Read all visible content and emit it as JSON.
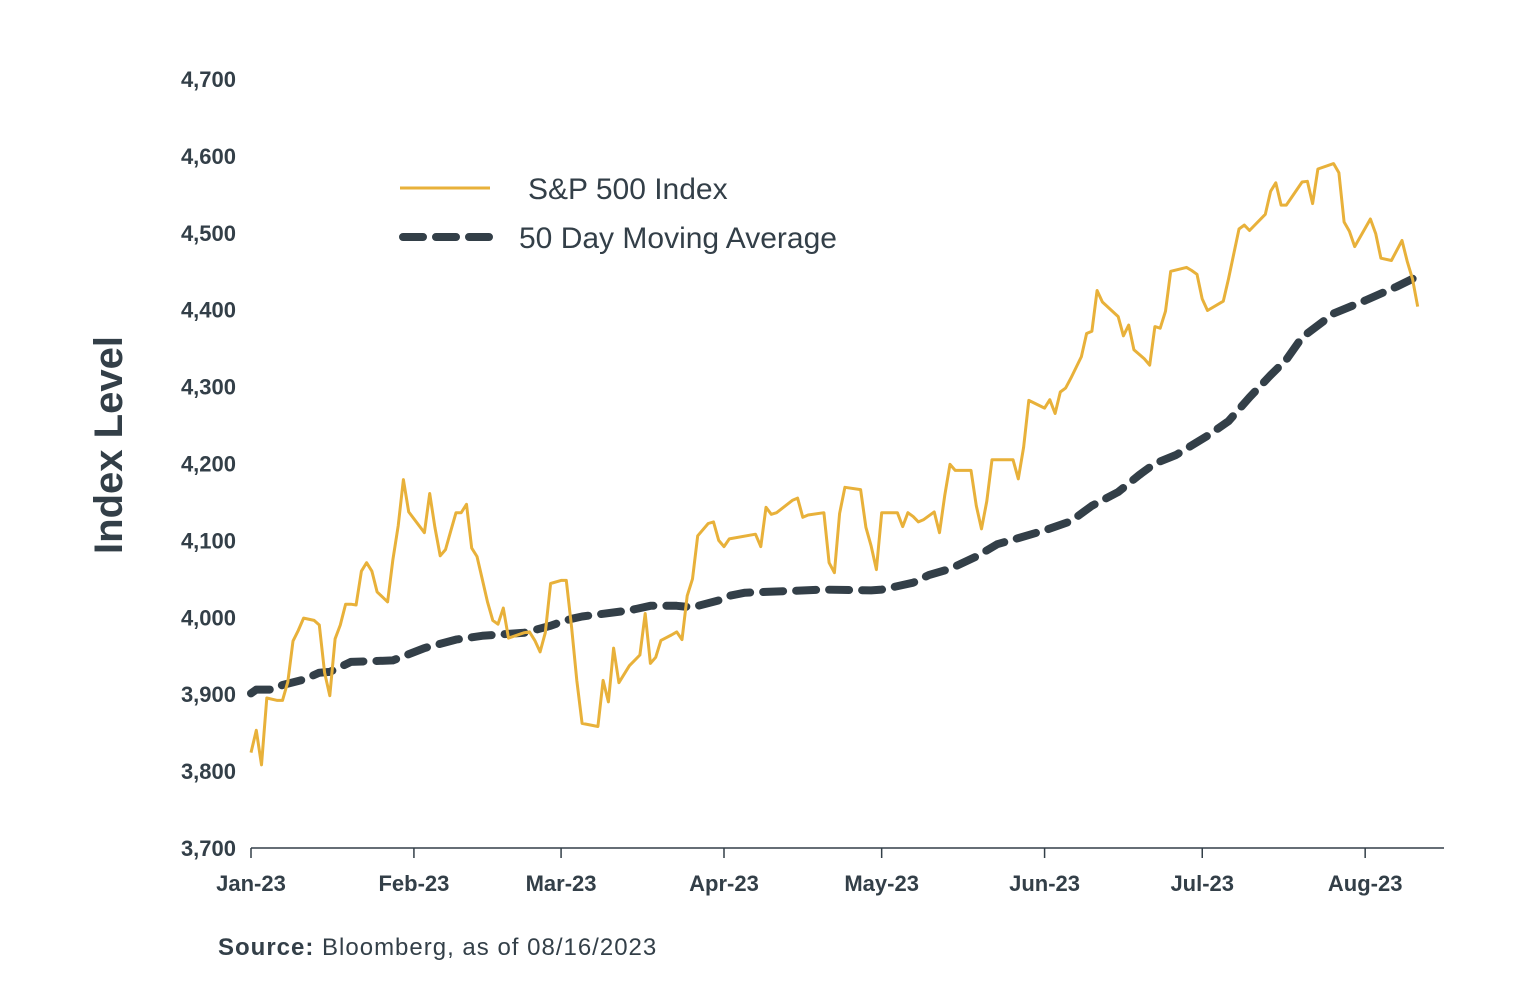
{
  "chart_data": {
    "type": "line",
    "ylabel": "Index Level",
    "xlabel": "",
    "ylim": [
      3700,
      4700
    ],
    "yticks": [
      "3,700",
      "3,800",
      "3,900",
      "4,000",
      "4,100",
      "4,200",
      "4,300",
      "4,400",
      "4,500",
      "4,600",
      "4,700"
    ],
    "ytick_values": [
      3700,
      3800,
      3900,
      4000,
      4100,
      4200,
      4300,
      4400,
      4500,
      4600,
      4700
    ],
    "xlim": [
      "2023-01-01",
      "2023-08-16"
    ],
    "xticks": [
      {
        "label": "Jan-23",
        "date": "2023-01-01"
      },
      {
        "label": "Feb-23",
        "date": "2023-02-01"
      },
      {
        "label": "Mar-23",
        "date": "2023-03-01"
      },
      {
        "label": "Apr-23",
        "date": "2023-04-01"
      },
      {
        "label": "May-23",
        "date": "2023-05-01"
      },
      {
        "label": "Jun-23",
        "date": "2023-06-01"
      },
      {
        "label": "Jul-23",
        "date": "2023-07-01"
      },
      {
        "label": "Aug-23",
        "date": "2023-08-01"
      }
    ],
    "legend_position": "top-left",
    "grid": false,
    "series": [
      {
        "name": "S&P 500 Index",
        "color": "#e8b13a",
        "style": "solid",
        "points": [
          [
            "2023-01-01",
            3824
          ],
          [
            "2023-01-02",
            3853
          ],
          [
            "2023-01-03",
            3808
          ],
          [
            "2023-01-04",
            3895
          ],
          [
            "2023-01-06",
            3892
          ],
          [
            "2023-01-07",
            3892
          ],
          [
            "2023-01-08",
            3916
          ],
          [
            "2023-01-09",
            3969
          ],
          [
            "2023-01-10",
            3983
          ],
          [
            "2023-01-11",
            3999
          ],
          [
            "2023-01-13",
            3996
          ],
          [
            "2023-01-14",
            3990
          ],
          [
            "2023-01-15",
            3928
          ],
          [
            "2023-01-16",
            3898
          ],
          [
            "2023-01-17",
            3972
          ],
          [
            "2023-01-18",
            3990
          ],
          [
            "2023-01-19",
            4017
          ],
          [
            "2023-01-20",
            4017
          ],
          [
            "2023-01-21",
            4016
          ],
          [
            "2023-01-22",
            4060
          ],
          [
            "2023-01-23",
            4071
          ],
          [
            "2023-01-24",
            4060
          ],
          [
            "2023-01-25",
            4033
          ],
          [
            "2023-01-27",
            4020
          ],
          [
            "2023-01-28",
            4075
          ],
          [
            "2023-01-29",
            4119
          ],
          [
            "2023-01-30",
            4179
          ],
          [
            "2023-01-31",
            4137
          ],
          [
            "2023-02-03",
            4110
          ],
          [
            "2023-02-04",
            4161
          ],
          [
            "2023-02-05",
            4117
          ],
          [
            "2023-02-06",
            4080
          ],
          [
            "2023-02-07",
            4088
          ],
          [
            "2023-02-08",
            4112
          ],
          [
            "2023-02-09",
            4136
          ],
          [
            "2023-02-10",
            4136
          ],
          [
            "2023-02-11",
            4147
          ],
          [
            "2023-02-12",
            4090
          ],
          [
            "2023-02-13",
            4079
          ],
          [
            "2023-02-14",
            4050
          ],
          [
            "2023-02-15",
            4020
          ],
          [
            "2023-02-16",
            3996
          ],
          [
            "2023-02-17",
            3991
          ],
          [
            "2023-02-18",
            4012
          ],
          [
            "2023-02-19",
            3973
          ],
          [
            "2023-02-22",
            3980
          ],
          [
            "2023-02-23",
            3981
          ],
          [
            "2023-02-24",
            3970
          ],
          [
            "2023-02-25",
            3955
          ],
          [
            "2023-02-26",
            3980
          ],
          [
            "2023-02-27",
            4044
          ],
          [
            "2023-03-01",
            4048
          ],
          [
            "2023-03-02",
            4048
          ],
          [
            "2023-03-03",
            3987
          ],
          [
            "2023-03-04",
            3918
          ],
          [
            "2023-03-05",
            3862
          ],
          [
            "2023-03-08",
            3858
          ],
          [
            "2023-03-09",
            3918
          ],
          [
            "2023-03-10",
            3890
          ],
          [
            "2023-03-11",
            3960
          ],
          [
            "2023-03-12",
            3915
          ],
          [
            "2023-03-14",
            3937
          ],
          [
            "2023-03-16",
            3951
          ],
          [
            "2023-03-17",
            4005
          ],
          [
            "2023-03-18",
            3940
          ],
          [
            "2023-03-19",
            3948
          ],
          [
            "2023-03-20",
            3970
          ],
          [
            "2023-03-22",
            3977
          ],
          [
            "2023-03-23",
            3981
          ],
          [
            "2023-03-24",
            3971
          ],
          [
            "2023-03-25",
            4028
          ],
          [
            "2023-03-26",
            4050
          ],
          [
            "2023-03-27",
            4106
          ],
          [
            "2023-03-29",
            4122
          ],
          [
            "2023-03-30",
            4124
          ],
          [
            "2023-03-31",
            4100
          ],
          [
            "2023-04-01",
            4092
          ],
          [
            "2023-04-02",
            4102
          ],
          [
            "2023-04-07",
            4108
          ],
          [
            "2023-04-08",
            4092
          ],
          [
            "2023-04-09",
            4143
          ],
          [
            "2023-04-10",
            4134
          ],
          [
            "2023-04-11",
            4136
          ],
          [
            "2023-04-14",
            4152
          ],
          [
            "2023-04-15",
            4155
          ],
          [
            "2023-04-16",
            4130
          ],
          [
            "2023-04-17",
            4133
          ],
          [
            "2023-04-20",
            4136
          ],
          [
            "2023-04-21",
            4071
          ],
          [
            "2023-04-22",
            4058
          ],
          [
            "2023-04-23",
            4135
          ],
          [
            "2023-04-24",
            4169
          ],
          [
            "2023-04-27",
            4166
          ],
          [
            "2023-04-28",
            4117
          ],
          [
            "2023-04-29",
            4093
          ],
          [
            "2023-04-30",
            4062
          ],
          [
            "2023-05-01",
            4136
          ],
          [
            "2023-05-04",
            4136
          ],
          [
            "2023-05-05",
            4118
          ],
          [
            "2023-05-06",
            4136
          ],
          [
            "2023-05-07",
            4131
          ],
          [
            "2023-05-08",
            4124
          ],
          [
            "2023-05-09",
            4127
          ],
          [
            "2023-05-11",
            4137
          ],
          [
            "2023-05-12",
            4110
          ],
          [
            "2023-05-13",
            4158
          ],
          [
            "2023-05-14",
            4199
          ],
          [
            "2023-05-15",
            4191
          ],
          [
            "2023-05-18",
            4191
          ],
          [
            "2023-05-19",
            4145
          ],
          [
            "2023-05-20",
            4115
          ],
          [
            "2023-05-21",
            4151
          ],
          [
            "2023-05-22",
            4205
          ],
          [
            "2023-05-25",
            4205
          ],
          [
            "2023-05-26",
            4205
          ],
          [
            "2023-05-27",
            4180
          ],
          [
            "2023-05-28",
            4221
          ],
          [
            "2023-05-29",
            4282
          ],
          [
            "2023-06-01",
            4272
          ],
          [
            "2023-06-02",
            4283
          ],
          [
            "2023-06-03",
            4265
          ],
          [
            "2023-06-04",
            4293
          ],
          [
            "2023-06-05",
            4298
          ],
          [
            "2023-06-06",
            4311
          ],
          [
            "2023-06-08",
            4339
          ],
          [
            "2023-06-09",
            4369
          ],
          [
            "2023-06-10",
            4372
          ],
          [
            "2023-06-11",
            4425
          ],
          [
            "2023-06-12",
            4410
          ],
          [
            "2023-06-15",
            4391
          ],
          [
            "2023-06-16",
            4366
          ],
          [
            "2023-06-17",
            4380
          ],
          [
            "2023-06-18",
            4348
          ],
          [
            "2023-06-20",
            4336
          ],
          [
            "2023-06-21",
            4328
          ],
          [
            "2023-06-22",
            4378
          ],
          [
            "2023-06-23",
            4376
          ],
          [
            "2023-06-24",
            4398
          ],
          [
            "2023-06-25",
            4450
          ],
          [
            "2023-06-28",
            4455
          ],
          [
            "2023-06-29",
            4451
          ],
          [
            "2023-06-30",
            4446
          ],
          [
            "2023-07-01",
            4414
          ],
          [
            "2023-07-02",
            4399
          ],
          [
            "2023-07-05",
            4411
          ],
          [
            "2023-07-06",
            4440
          ],
          [
            "2023-07-08",
            4505
          ],
          [
            "2023-07-09",
            4510
          ],
          [
            "2023-07-10",
            4503
          ],
          [
            "2023-07-13",
            4524
          ],
          [
            "2023-07-14",
            4554
          ],
          [
            "2023-07-15",
            4565
          ],
          [
            "2023-07-16",
            4536
          ],
          [
            "2023-07-17",
            4536
          ],
          [
            "2023-07-20",
            4566
          ],
          [
            "2023-07-21",
            4567
          ],
          [
            "2023-07-22",
            4538
          ],
          [
            "2023-07-23",
            4583
          ],
          [
            "2023-07-26",
            4590
          ],
          [
            "2023-07-27",
            4578
          ],
          [
            "2023-07-28",
            4514
          ],
          [
            "2023-07-29",
            4502
          ],
          [
            "2023-07-30",
            4482
          ],
          [
            "2023-08-02",
            4518
          ],
          [
            "2023-08-03",
            4499
          ],
          [
            "2023-08-04",
            4467
          ],
          [
            "2023-08-06",
            4464
          ],
          [
            "2023-08-08",
            4490
          ],
          [
            "2023-08-09",
            4463
          ],
          [
            "2023-08-10",
            4440
          ],
          [
            "2023-08-11",
            4404
          ]
        ]
      },
      {
        "name": "50 Day Moving Average",
        "color": "#333f48",
        "style": "dashed",
        "points": [
          [
            "2023-01-01",
            3901
          ],
          [
            "2023-01-02",
            3906
          ],
          [
            "2023-01-05",
            3906
          ],
          [
            "2023-01-07",
            3912
          ],
          [
            "2023-01-11",
            3919
          ],
          [
            "2023-01-14",
            3928
          ],
          [
            "2023-01-16",
            3929
          ],
          [
            "2023-01-20",
            3942
          ],
          [
            "2023-01-28",
            3944
          ],
          [
            "2023-02-03",
            3960
          ],
          [
            "2023-02-09",
            3971
          ],
          [
            "2023-02-14",
            3976
          ],
          [
            "2023-02-22",
            3980
          ],
          [
            "2023-02-27",
            3989
          ],
          [
            "2023-03-01",
            3994
          ],
          [
            "2023-03-03",
            3998
          ],
          [
            "2023-03-05",
            4001
          ],
          [
            "2023-03-14",
            4009
          ],
          [
            "2023-03-18",
            4015
          ],
          [
            "2023-03-23",
            4015
          ],
          [
            "2023-03-26",
            4013
          ],
          [
            "2023-03-31",
            4022
          ],
          [
            "2023-04-02",
            4028
          ],
          [
            "2023-04-05",
            4032
          ],
          [
            "2023-04-09",
            4033
          ],
          [
            "2023-04-20",
            4036
          ],
          [
            "2023-04-29",
            4035
          ],
          [
            "2023-05-01",
            4036
          ],
          [
            "2023-05-07",
            4045
          ],
          [
            "2023-05-10",
            4055
          ],
          [
            "2023-05-14",
            4063
          ],
          [
            "2023-05-19",
            4079
          ],
          [
            "2023-05-20",
            4083
          ],
          [
            "2023-05-23",
            4095
          ],
          [
            "2023-05-27",
            4103
          ],
          [
            "2023-06-01",
            4113
          ],
          [
            "2023-06-06",
            4125
          ],
          [
            "2023-06-10",
            4145
          ],
          [
            "2023-06-15",
            4163
          ],
          [
            "2023-06-19",
            4185
          ],
          [
            "2023-06-22",
            4200
          ],
          [
            "2023-06-26",
            4211
          ],
          [
            "2023-07-02",
            4236
          ],
          [
            "2023-07-06",
            4255
          ],
          [
            "2023-07-10",
            4286
          ],
          [
            "2023-07-14",
            4315
          ],
          [
            "2023-07-17",
            4335
          ],
          [
            "2023-07-20",
            4364
          ],
          [
            "2023-07-26",
            4395
          ],
          [
            "2023-08-01",
            4412
          ],
          [
            "2023-08-07",
            4430
          ],
          [
            "2023-08-10",
            4440
          ],
          [
            "2023-08-11",
            4446
          ]
        ]
      }
    ]
  },
  "source": {
    "label": "Source:",
    "text": " Bloomberg, as of 08/16/2023"
  }
}
